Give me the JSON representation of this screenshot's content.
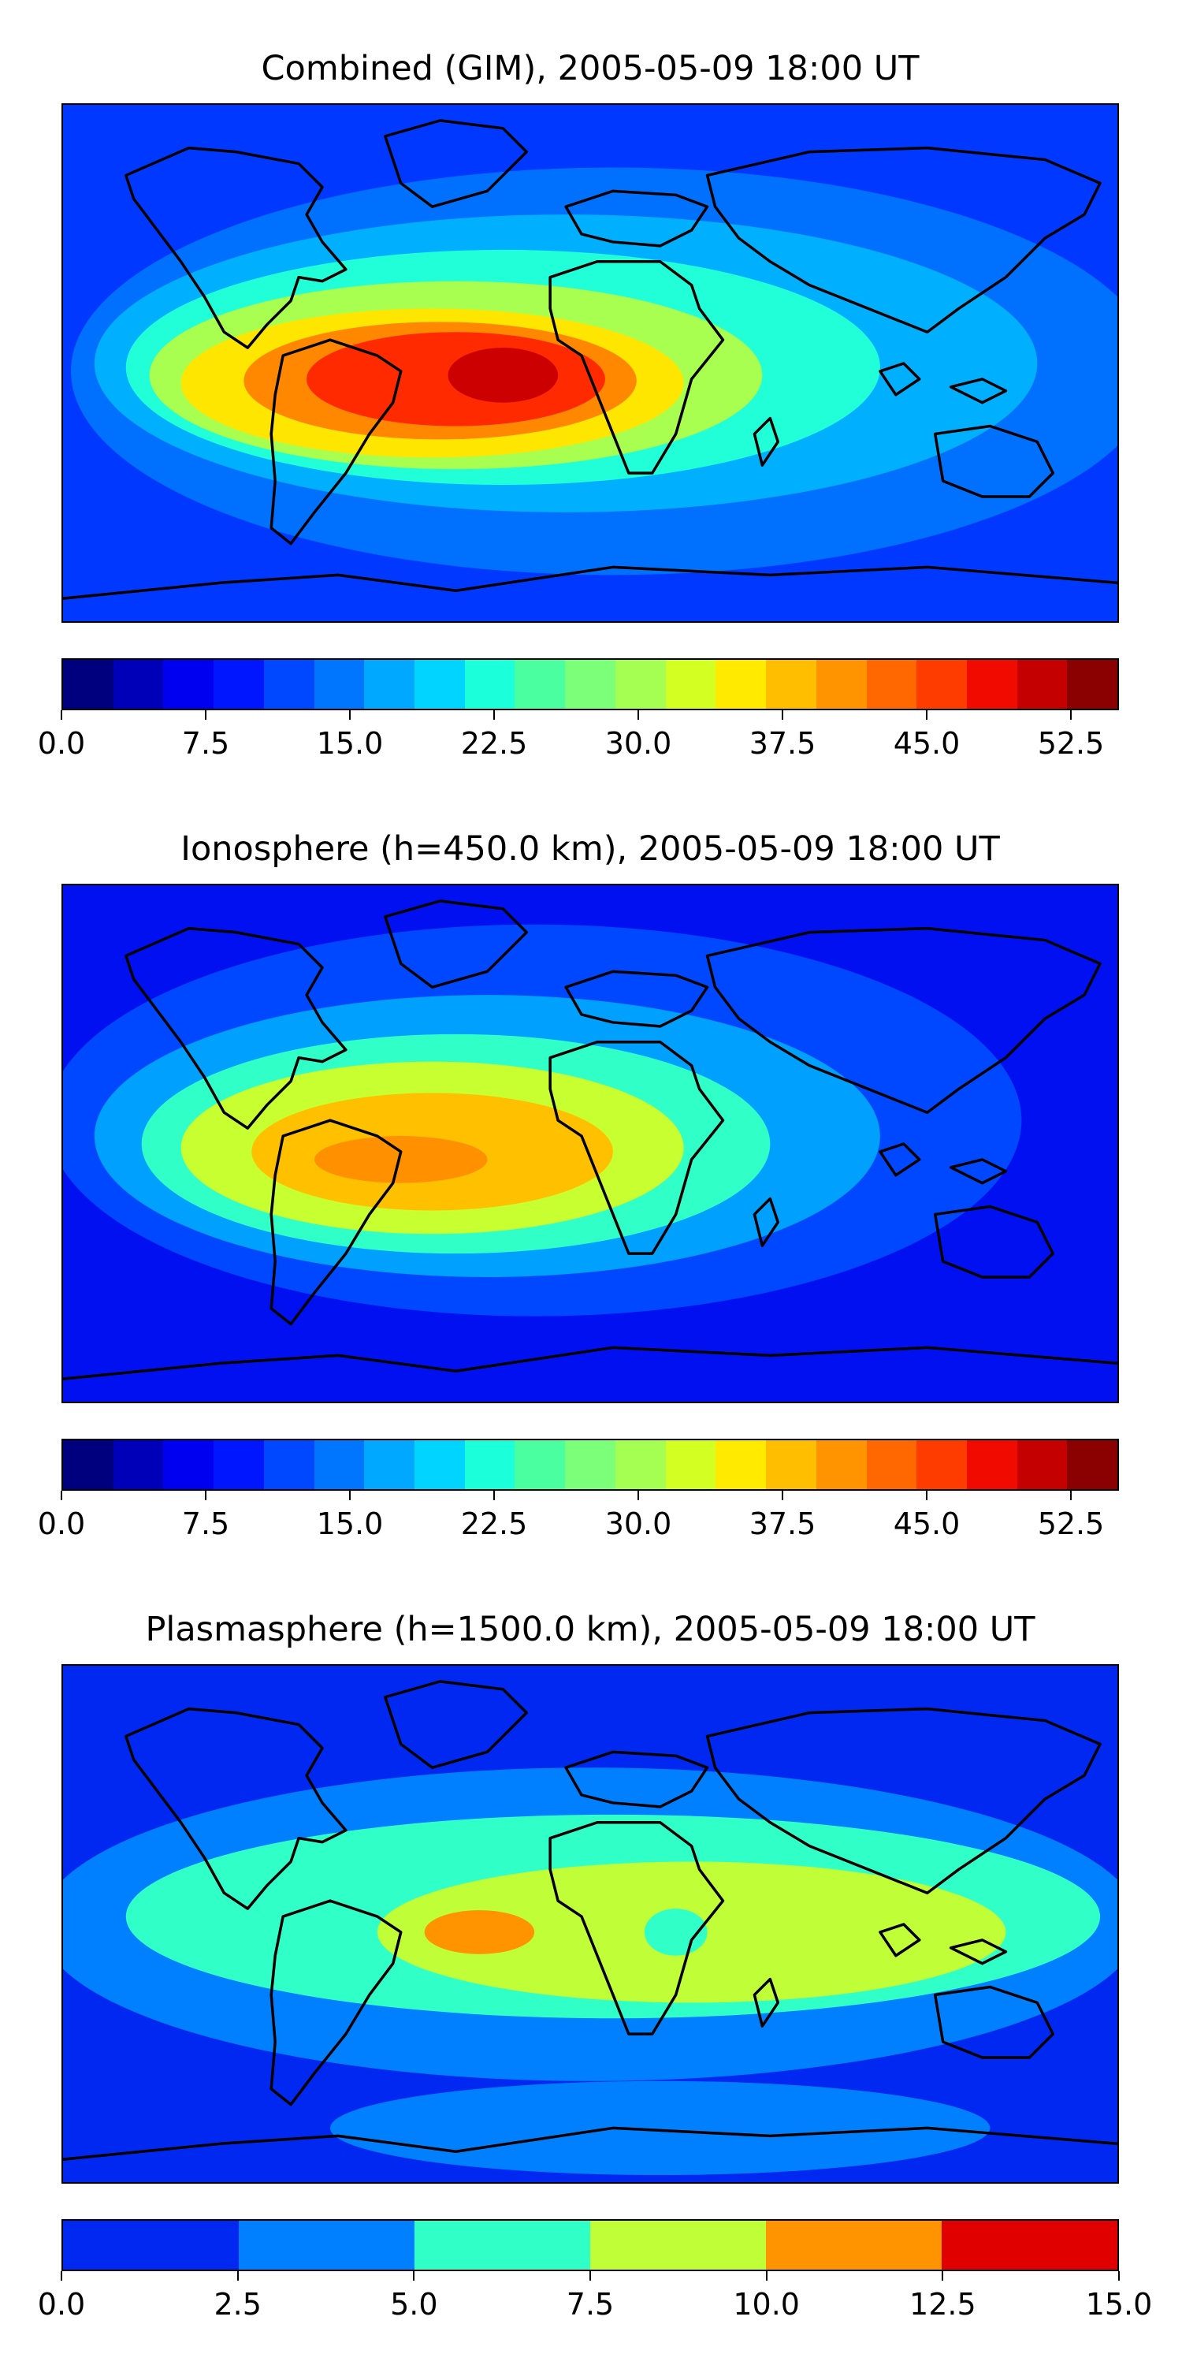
{
  "panels": [
    {
      "id": "combined",
      "title": "Combined (GIM), 2005-05-09 18:00 UT",
      "colorbar": {
        "colors": [
          "#00007f",
          "#0000b8",
          "#0000f1",
          "#0016ff",
          "#0048ff",
          "#0076ff",
          "#00a8ff",
          "#00d4ff",
          "#1bffdb",
          "#4aff9f",
          "#7cff79",
          "#a5ff52",
          "#d3ff23",
          "#ffea00",
          "#ffbe00",
          "#ff9400",
          "#ff6800",
          "#ff3c00",
          "#f10a00",
          "#c40000",
          "#8b0000"
        ],
        "tick_labels": [
          "0.0",
          "7.5",
          "15.0",
          "22.5",
          "30.0",
          "37.5",
          "45.0",
          "52.5"
        ],
        "tick_values": [
          0,
          7.5,
          15,
          22.5,
          30,
          37.5,
          45,
          52.5
        ],
        "vmin": 0,
        "vmax": 55
      },
      "fields": {
        "background": "#0038ff",
        "blobs": [
          {
            "color": "#0070ff",
            "peak": 10
          },
          {
            "color": "#00b0ff",
            "peak": 17.5
          },
          {
            "color": "#20ffd8",
            "peak": 22.5
          },
          {
            "color": "#a8ff50",
            "peak": 30
          },
          {
            "color": "#ffe600",
            "peak": 37.5
          },
          {
            "color": "#ff8800",
            "peak": 42.5
          },
          {
            "color": "#ff2a00",
            "peak": 47.5
          },
          {
            "color": "#cc0000",
            "peak": 52.5
          }
        ]
      }
    },
    {
      "id": "ionosphere",
      "title": "Ionosphere  (h=450.0 km), 2005-05-09 18:00 UT",
      "colorbar": {
        "colors": [
          "#00007f",
          "#0000b8",
          "#0000f1",
          "#0016ff",
          "#0048ff",
          "#0076ff",
          "#00a8ff",
          "#00d4ff",
          "#1bffdb",
          "#4aff9f",
          "#7cff79",
          "#a5ff52",
          "#d3ff23",
          "#ffea00",
          "#ffbe00",
          "#ff9400",
          "#ff6800",
          "#ff3c00",
          "#f10a00",
          "#c40000",
          "#8b0000"
        ],
        "tick_labels": [
          "0.0",
          "7.5",
          "15.0",
          "22.5",
          "30.0",
          "37.5",
          "45.0",
          "52.5"
        ],
        "tick_values": [
          0,
          7.5,
          15,
          22.5,
          30,
          37.5,
          45,
          52.5
        ],
        "vmin": 0,
        "vmax": 55
      },
      "fields": {
        "background": "#0010f0",
        "blobs": [
          {
            "color": "#0048ff",
            "peak": 7.5
          },
          {
            "color": "#00a0ff",
            "peak": 15
          },
          {
            "color": "#30ffc8",
            "peak": 22.5
          },
          {
            "color": "#c8ff30",
            "peak": 30
          },
          {
            "color": "#ffc000",
            "peak": 37.5
          },
          {
            "color": "#ff9000",
            "peak": 42.5
          }
        ]
      }
    },
    {
      "id": "plasmasphere",
      "title": "Plasmasphere (h=1500.0 km), 2005-05-09 18:00 UT",
      "colorbar": {
        "colors": [
          "#0028f0",
          "#0080ff",
          "#30ffc8",
          "#c0ff38",
          "#ff9400",
          "#e00000"
        ],
        "tick_labels": [
          "0.0",
          "2.5",
          "5.0",
          "7.5",
          "10.0",
          "12.5",
          "15.0"
        ],
        "tick_values": [
          0,
          2.5,
          5,
          7.5,
          10,
          12.5,
          15
        ],
        "vmin": 0,
        "vmax": 15
      },
      "fields": {
        "background": "#0028f0",
        "blobs": [
          {
            "color": "#0080ff",
            "peak": 2.5
          },
          {
            "color": "#30ffc8",
            "peak": 5
          },
          {
            "color": "#c0ff38",
            "peak": 7.5
          },
          {
            "color": "#ff9400",
            "peak": 10
          }
        ]
      }
    }
  ]
}
